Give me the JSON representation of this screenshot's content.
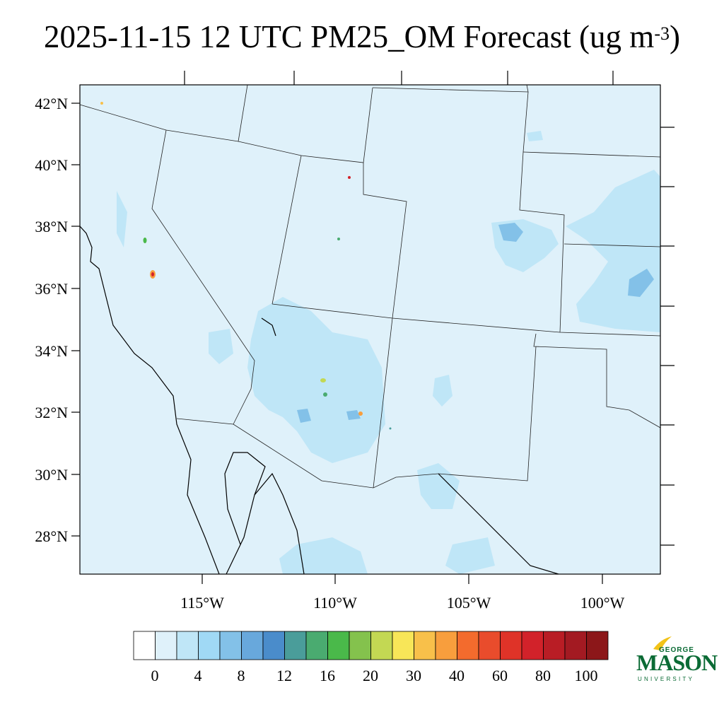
{
  "title": {
    "main": "2025-11-15 12 UTC PM25_OM Forecast (ug m",
    "superscript": "-3",
    "close": ")"
  },
  "map": {
    "background_color": "#dff1fa",
    "lat_labels": [
      "42°N",
      "40°N",
      "38°N",
      "36°N",
      "34°N",
      "32°N",
      "30°N",
      "28°N"
    ],
    "lon_labels": [
      "115°W",
      "110°W",
      "105°W",
      "100°W"
    ]
  },
  "colorbar": {
    "colors": [
      "#ffffff",
      "#dff1fa",
      "#bfe6f7",
      "#a0d9f5",
      "#83c1e8",
      "#68a8dc",
      "#4a8ccb",
      "#4a9d9a",
      "#4aab70",
      "#4ab94a",
      "#84c24d",
      "#c3d853",
      "#f8e658",
      "#f8c04a",
      "#f89e3d",
      "#f36b2d",
      "#e94c2c",
      "#df3328",
      "#d2222a",
      "#b91d25",
      "#a31a22",
      "#8c1719"
    ],
    "labels": [
      "0",
      "4",
      "8",
      "12",
      "16",
      "20",
      "30",
      "40",
      "60",
      "80",
      "100"
    ]
  },
  "logo": {
    "line1": "GEORGE",
    "line2": "MASON",
    "line3": "UNIVERSITY",
    "color": "#0b6b35",
    "accent": "#f2c318"
  }
}
